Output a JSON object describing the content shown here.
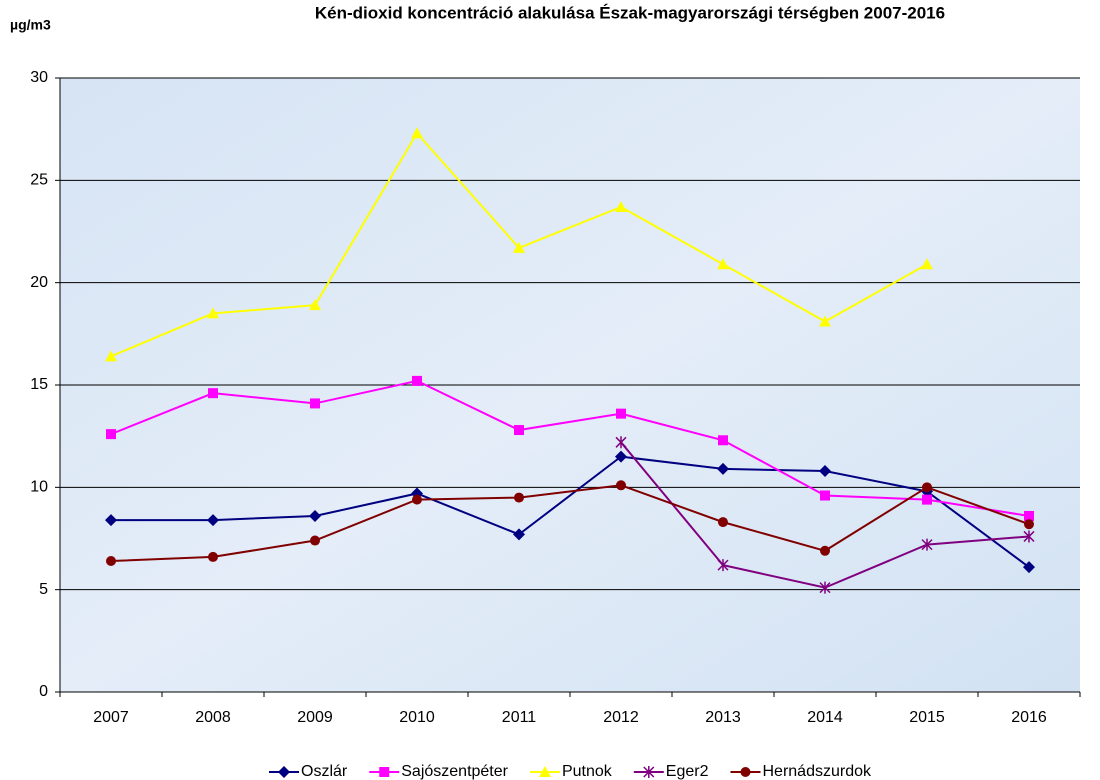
{
  "chart_data": {
    "type": "line",
    "title": "Kén-dioxid koncentráció alakulása Észak-magyarországi térségben 2007-2016",
    "y_label": "µg/m3",
    "categories": [
      "2007",
      "2008",
      "2009",
      "2010",
      "2011",
      "2012",
      "2013",
      "2014",
      "2015",
      "2016"
    ],
    "series": [
      {
        "name": "Oszlár",
        "color": "#000080",
        "values": [
          8.4,
          8.4,
          8.6,
          9.7,
          7.7,
          11.5,
          10.9,
          10.8,
          9.8,
          6.1
        ]
      },
      {
        "name": "Sajószentpéter",
        "color": "#ff00ff",
        "values": [
          12.6,
          14.6,
          14.1,
          15.2,
          12.8,
          13.6,
          12.3,
          9.6,
          9.4,
          8.6
        ]
      },
      {
        "name": "Putnok",
        "color": "#ffff00",
        "values": [
          16.4,
          18.5,
          18.9,
          27.3,
          21.7,
          23.7,
          20.9,
          18.1,
          20.9,
          null
        ]
      },
      {
        "name": "Eger2",
        "color": "#800080",
        "values": [
          null,
          null,
          null,
          null,
          null,
          12.2,
          6.2,
          5.1,
          7.2,
          7.6
        ]
      },
      {
        "name": "Hernádszurdok",
        "color": "#800000",
        "values": [
          6.4,
          6.6,
          7.4,
          9.4,
          9.5,
          10.1,
          8.3,
          6.9,
          10.0,
          8.2
        ]
      }
    ],
    "ylim": [
      0,
      30
    ],
    "yticks": [
      0,
      5,
      10,
      15,
      20,
      25,
      30
    ],
    "grid": true,
    "legend": "bottom"
  }
}
